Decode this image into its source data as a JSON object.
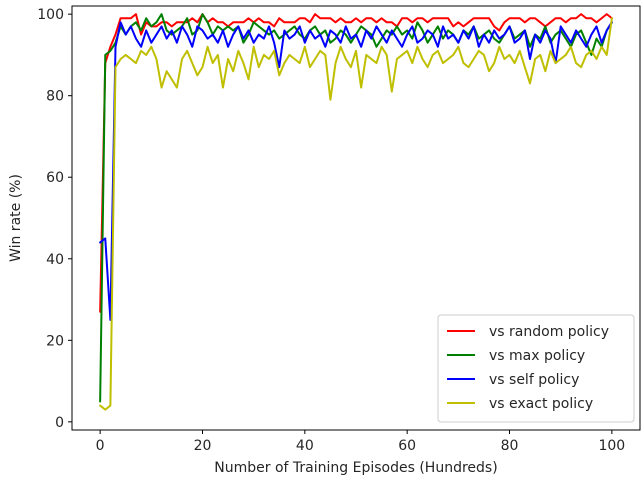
{
  "chart_data": {
    "type": "line",
    "title": "",
    "xlabel": "Number of Training Episodes (Hundreds)",
    "ylabel": "Win rate (%)",
    "xlim": [
      -5.5,
      105.5
    ],
    "ylim": [
      -2,
      102
    ],
    "xticks": [
      0,
      20,
      40,
      60,
      80,
      100
    ],
    "yticks": [
      0,
      20,
      40,
      60,
      80,
      100
    ],
    "grid": false,
    "legend_position": "lower right",
    "x": [
      0,
      1,
      2,
      3,
      4,
      5,
      6,
      7,
      8,
      9,
      10,
      11,
      12,
      13,
      14,
      15,
      16,
      17,
      18,
      19,
      20,
      21,
      22,
      23,
      24,
      25,
      26,
      27,
      28,
      29,
      30,
      31,
      32,
      33,
      34,
      35,
      36,
      37,
      38,
      39,
      40,
      41,
      42,
      43,
      44,
      45,
      46,
      47,
      48,
      49,
      50,
      51,
      52,
      53,
      54,
      55,
      56,
      57,
      58,
      59,
      60,
      61,
      62,
      63,
      64,
      65,
      66,
      67,
      68,
      69,
      70,
      71,
      72,
      73,
      74,
      75,
      76,
      77,
      78,
      79,
      80,
      81,
      82,
      83,
      84,
      85,
      86,
      87,
      88,
      89,
      90,
      91,
      92,
      93,
      94,
      95,
      96,
      97,
      98,
      99,
      100
    ],
    "series": [
      {
        "name": "vs random policy",
        "color": "#ff0000",
        "values": [
          27,
          88,
          92,
          95,
          99,
          99,
          99,
          100,
          95,
          98,
          97,
          97,
          98,
          98,
          97,
          98,
          98,
          98,
          99,
          98,
          100,
          98,
          99,
          98,
          98,
          97,
          98,
          98,
          98,
          99,
          98,
          99,
          98,
          98,
          97,
          99,
          98,
          98,
          98,
          99,
          99,
          98,
          100,
          99,
          99,
          99,
          98,
          99,
          98,
          98,
          99,
          98,
          99,
          99,
          98,
          99,
          98,
          98,
          97,
          99,
          99,
          98,
          99,
          99,
          98,
          99,
          99,
          99,
          99,
          97,
          98,
          97,
          98,
          99,
          99,
          99,
          99,
          97,
          96,
          98,
          99,
          99,
          99,
          98,
          99,
          99,
          98,
          97,
          98,
          99,
          99,
          98,
          99,
          99,
          100,
          99,
          99,
          98,
          99,
          100,
          99
        ]
      },
      {
        "name": "vs max policy",
        "color": "#008000",
        "values": [
          5,
          90,
          91,
          93,
          97,
          95,
          97,
          98,
          96,
          99,
          97,
          98,
          100,
          96,
          95,
          96,
          97,
          99,
          95,
          96,
          100,
          98,
          95,
          97,
          96,
          97,
          96,
          97,
          93,
          95,
          98,
          97,
          96,
          95,
          96,
          94,
          95,
          96,
          97,
          95,
          94,
          96,
          97,
          95,
          96,
          93,
          94,
          96,
          95,
          93,
          95,
          97,
          96,
          95,
          92,
          94,
          96,
          95,
          97,
          95,
          96,
          94,
          98,
          96,
          93,
          95,
          97,
          94,
          96,
          95,
          93,
          96,
          95,
          97,
          94,
          95,
          96,
          94,
          93,
          95,
          97,
          94,
          95,
          96,
          92,
          95,
          94,
          97,
          93,
          95,
          96,
          94,
          92,
          95,
          96,
          93,
          90,
          94,
          92,
          96,
          98
        ]
      },
      {
        "name": "vs self policy",
        "color": "#0000ff",
        "values": [
          44,
          45,
          25,
          92,
          98,
          95,
          97,
          94,
          92,
          96,
          93,
          95,
          97,
          94,
          96,
          93,
          97,
          95,
          92,
          97,
          96,
          94,
          95,
          93,
          96,
          92,
          95,
          97,
          94,
          96,
          93,
          95,
          94,
          97,
          93,
          87,
          96,
          94,
          95,
          97,
          93,
          96,
          94,
          95,
          92,
          96,
          95,
          93,
          97,
          94,
          95,
          92,
          96,
          94,
          97,
          95,
          93,
          96,
          94,
          92,
          95,
          97,
          93,
          94,
          96,
          95,
          92,
          97,
          94,
          95,
          93,
          96,
          94,
          97,
          92,
          95,
          93,
          96,
          94,
          95,
          97,
          93,
          94,
          96,
          89,
          95,
          93,
          96,
          94,
          88,
          97,
          95,
          93,
          96,
          94,
          92,
          95,
          97,
          93,
          96,
          98
        ]
      },
      {
        "name": "vs exact policy",
        "color": "#bfbf00",
        "values": [
          4,
          3,
          4,
          87,
          89,
          90,
          89,
          88,
          91,
          90,
          92,
          89,
          82,
          86,
          84,
          82,
          89,
          91,
          88,
          85,
          87,
          92,
          88,
          90,
          82,
          89,
          86,
          91,
          88,
          84,
          92,
          87,
          90,
          89,
          91,
          85,
          88,
          90,
          89,
          88,
          92,
          87,
          89,
          91,
          90,
          79,
          88,
          92,
          89,
          87,
          91,
          82,
          90,
          89,
          88,
          92,
          90,
          81,
          89,
          90,
          91,
          88,
          92,
          89,
          87,
          90,
          91,
          88,
          89,
          90,
          92,
          88,
          87,
          89,
          91,
          90,
          86,
          88,
          92,
          89,
          90,
          88,
          91,
          87,
          83,
          89,
          90,
          86,
          91,
          88,
          89,
          90,
          92,
          88,
          87,
          90,
          91,
          89,
          92,
          90,
          99
        ]
      }
    ]
  }
}
